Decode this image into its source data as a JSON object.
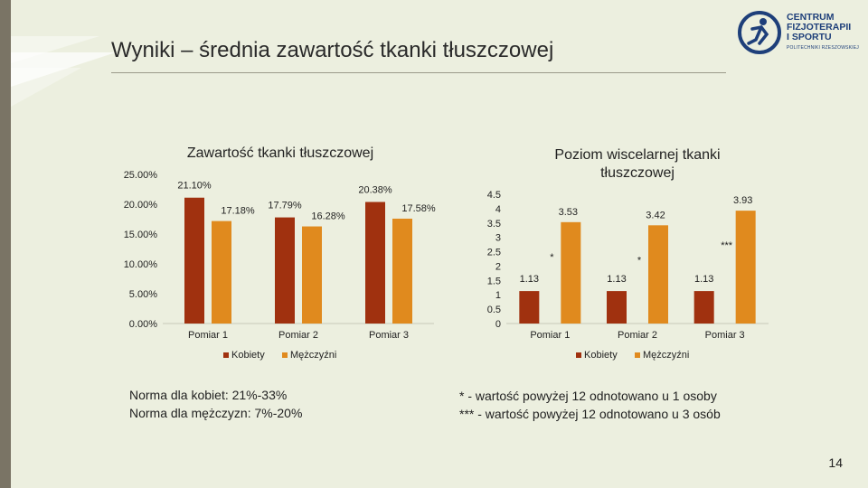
{
  "slide": {
    "title": "Wyniki – średnia zawartość tkanki tłuszczowej",
    "page_number": "14"
  },
  "logo": {
    "line1": "CENTRUM",
    "line2": "FIZJOTERAPII",
    "line3": "I SPORTU",
    "line4": "POLITECHNIKI RZESZOWSKIEJ"
  },
  "colors": {
    "kobiety": "#a0310f",
    "mezczyzni": "#e08a1e",
    "background": "#ecefdf",
    "band": "#7a7465"
  },
  "chart_data": [
    {
      "type": "bar",
      "title": "Zawartość tkanki tłuszczowej",
      "categories": [
        "Pomiar 1",
        "Pomiar 2",
        "Pomiar 3"
      ],
      "series": [
        {
          "name": "Kobiety",
          "values": [
            21.1,
            17.79,
            20.38
          ],
          "labels": [
            "21.10%",
            "17.79%",
            "20.38%"
          ]
        },
        {
          "name": "Mężczyźni",
          "values": [
            17.18,
            16.28,
            17.58
          ],
          "labels": [
            "17.18%",
            "16.28%",
            "17.58%"
          ]
        }
      ],
      "ylim": [
        0,
        25
      ],
      "yticks": [
        "0.00%",
        "5.00%",
        "10.00%",
        "15.00%",
        "20.00%",
        "25.00%"
      ],
      "ytick_values": [
        0,
        5,
        10,
        15,
        20,
        25
      ],
      "legend": "bottom",
      "grid": false
    },
    {
      "type": "bar",
      "title": "Poziom wiscelarnej tkanki tłuszczowej",
      "categories": [
        "Pomiar 1",
        "Pomiar 2",
        "Pomiar 3"
      ],
      "series": [
        {
          "name": "Kobiety",
          "values": [
            1.13,
            1.13,
            1.13
          ],
          "labels": [
            "1.13",
            "1.13",
            "1.13"
          ]
        },
        {
          "name": "Mężczyźni",
          "values": [
            3.53,
            3.42,
            3.93
          ],
          "labels": [
            "3.53",
            "3.42",
            "3.93"
          ],
          "annotations": [
            "*",
            "*",
            "***"
          ]
        }
      ],
      "ylim": [
        0,
        4.5
      ],
      "yticks": [
        "0",
        "0.5",
        "1",
        "1.5",
        "2",
        "2.5",
        "3",
        "3.5",
        "4",
        "4.5"
      ],
      "ytick_values": [
        0,
        0.5,
        1,
        1.5,
        2,
        2.5,
        3,
        3.5,
        4,
        4.5
      ],
      "legend": "bottom",
      "grid": false
    }
  ],
  "notes": {
    "left_line1": "Norma dla kobiet: 21%-33%",
    "left_line2": "Norma dla mężczyzn: 7%-20%",
    "right_line1": "* - wartość powyżej 12 odnotowano u 1 osoby",
    "right_line2": "*** - wartość powyżej 12 odnotowano u 3 osób"
  }
}
